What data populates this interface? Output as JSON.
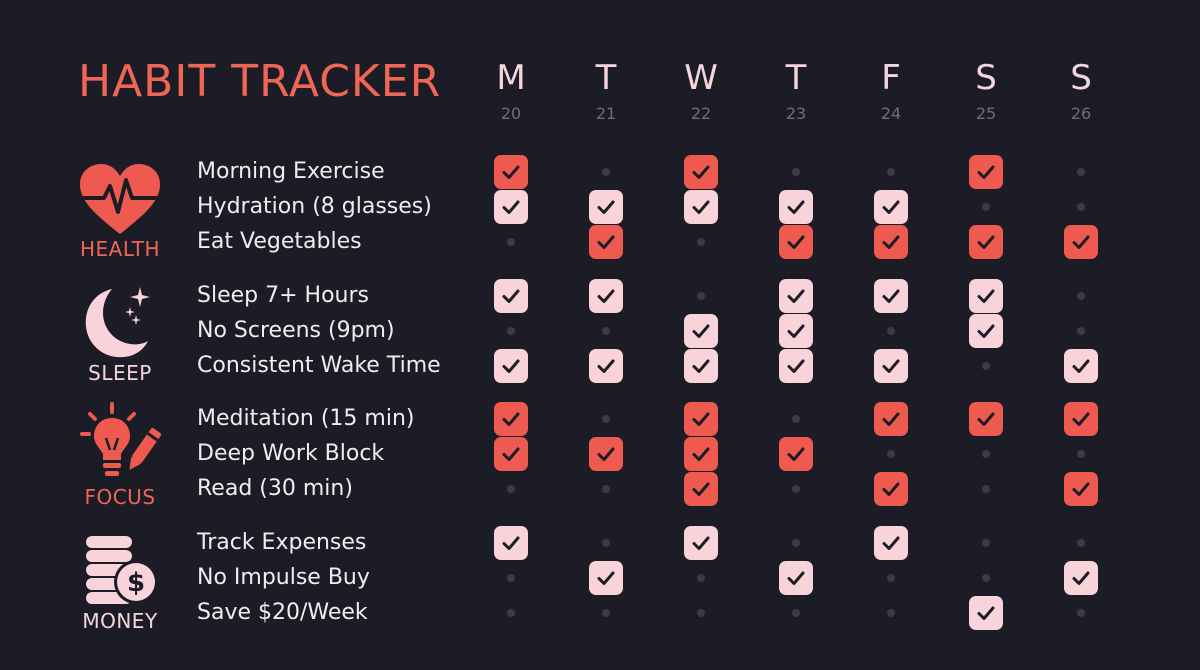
{
  "title": "HABIT TRACKER",
  "days": [
    {
      "letter": "M",
      "date": "20"
    },
    {
      "letter": "T",
      "date": "21"
    },
    {
      "letter": "W",
      "date": "22"
    },
    {
      "letter": "T",
      "date": "23"
    },
    {
      "letter": "F",
      "date": "24"
    },
    {
      "letter": "S",
      "date": "25"
    },
    {
      "letter": "S",
      "date": "26"
    }
  ],
  "colors": {
    "background": "#1c1c26",
    "accent_coral": "#ee5a4f",
    "accent_pink": "#f9d3da",
    "empty_dot": "#3c3b48"
  },
  "categories": [
    {
      "label": "HEALTH",
      "icon": "heart-pulse-icon",
      "style": "coral",
      "habits": [
        {
          "name": "Morning Exercise",
          "done": [
            1,
            0,
            1,
            0,
            0,
            1,
            0
          ]
        },
        {
          "name": "Hydration (8 glasses)",
          "done": [
            1,
            1,
            1,
            1,
            1,
            0,
            0
          ]
        },
        {
          "name": "Eat Vegetables",
          "done": [
            0,
            1,
            0,
            1,
            1,
            1,
            1
          ]
        }
      ]
    },
    {
      "label": "SLEEP",
      "icon": "moon-stars-icon",
      "style": "pink",
      "habits": [
        {
          "name": "Sleep 7+ Hours",
          "done": [
            1,
            1,
            0,
            1,
            1,
            1,
            0
          ]
        },
        {
          "name": "No Screens (9pm)",
          "done": [
            0,
            0,
            1,
            1,
            0,
            1,
            0
          ]
        },
        {
          "name": "Consistent Wake Time",
          "done": [
            1,
            1,
            1,
            1,
            1,
            0,
            1
          ]
        }
      ]
    },
    {
      "label": "FOCUS",
      "icon": "lightbulb-pencil-icon",
      "style": "coral",
      "habits": [
        {
          "name": "Meditation (15 min)",
          "done": [
            1,
            0,
            1,
            0,
            1,
            1,
            1
          ]
        },
        {
          "name": "Deep Work Block",
          "done": [
            1,
            1,
            1,
            1,
            0,
            0,
            0
          ]
        },
        {
          "name": "Read (30 min)",
          "done": [
            0,
            0,
            1,
            0,
            1,
            0,
            1
          ]
        }
      ]
    },
    {
      "label": "MONEY",
      "icon": "coin-stack-dollar-icon",
      "style": "pink",
      "habits": [
        {
          "name": "Track Expenses",
          "done": [
            1,
            0,
            1,
            0,
            1,
            0,
            0
          ]
        },
        {
          "name": "No Impulse Buy",
          "done": [
            0,
            1,
            0,
            1,
            0,
            0,
            1
          ]
        },
        {
          "name": "Save $20/Week",
          "done": [
            0,
            0,
            0,
            0,
            0,
            1,
            0
          ]
        }
      ]
    }
  ]
}
